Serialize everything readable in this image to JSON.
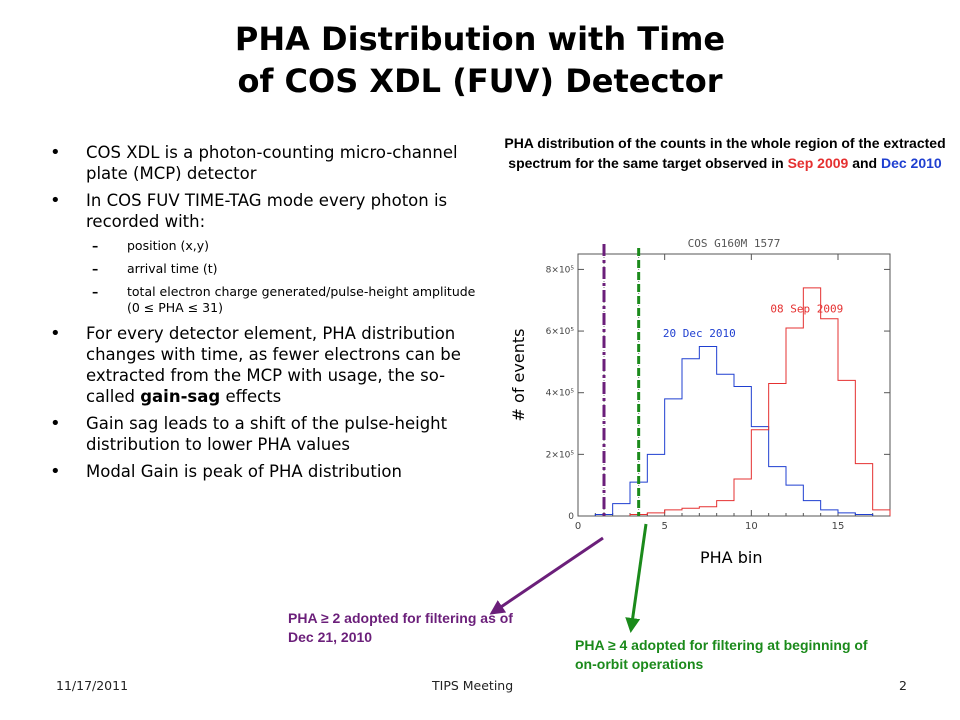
{
  "title": {
    "line1": "PHA Distribution with Time",
    "line2": "of COS XDL (FUV) Detector"
  },
  "bullets": [
    {
      "text": "COS XDL is a photon-counting micro-channel plate (MCP) detector"
    },
    {
      "text": "In COS FUV TIME-TAG mode every photon is recorded with:",
      "sub": [
        "position (x,y)",
        "arrival time (t)",
        "total electron charge generated/pulse-height amplitude (0 ≤ PHA ≤ 31)"
      ]
    },
    {
      "text_pre": "For every detector element, PHA distribution changes with time, as fewer electrons can be extracted from the MCP with usage, the so-called ",
      "text_bold": "gain-sag",
      "text_post": " effects"
    },
    {
      "text": "Gain sag leads to a shift of the pulse-height distribution to lower PHA values"
    },
    {
      "text": "Modal Gain is peak of PHA distribution"
    }
  ],
  "caption": {
    "part1": "PHA distribution of the counts in the whole region of the extracted spectrum for the same target observed in ",
    "red": "Sep 2009",
    "mid": " and ",
    "blue": "Dec 2010"
  },
  "axis_labels": {
    "y": "# of events",
    "x": "PHA bin"
  },
  "notes": {
    "pha2": "PHA ≥ 2 adopted for filtering as of Dec 21, 2010",
    "pha4": "PHA ≥ 4 adopted for filtering at beginning of on-orbit operations"
  },
  "footer": {
    "date": "11/17/2011",
    "center": "TIPS Meeting",
    "page": "2"
  },
  "colors": {
    "red": "#e53030",
    "blue": "#1f3fd0",
    "purple": "#6b1f7a",
    "green": "#1b8a1b",
    "axis": "#555555"
  },
  "chart_data": {
    "type": "line",
    "title": "COS G160M 1577",
    "xlim": [
      0,
      18
    ],
    "ylim": [
      0,
      850000
    ],
    "x_ticks": [
      0,
      5,
      10,
      15
    ],
    "y_ticks": [
      {
        "value": 0,
        "label": "0"
      },
      {
        "value": 200000,
        "label": "2×10⁵"
      },
      {
        "value": 400000,
        "label": "4×10⁵"
      },
      {
        "value": 600000,
        "label": "6×10⁵"
      },
      {
        "value": 800000,
        "label": "8×10⁵"
      }
    ],
    "series": [
      {
        "name": "20 Dec 2010",
        "color": "#1f3fd0",
        "bins": [
          [
            1,
            2,
            5000
          ],
          [
            2,
            3,
            40000
          ],
          [
            3,
            4,
            110000
          ],
          [
            4,
            5,
            200000
          ],
          [
            5,
            6,
            380000
          ],
          [
            6,
            7,
            510000
          ],
          [
            7,
            8,
            550000
          ],
          [
            8,
            9,
            460000
          ],
          [
            9,
            10,
            420000
          ],
          [
            10,
            11,
            290000
          ],
          [
            11,
            12,
            160000
          ],
          [
            12,
            13,
            100000
          ],
          [
            13,
            14,
            50000
          ],
          [
            14,
            15,
            20000
          ],
          [
            15,
            16,
            10000
          ],
          [
            16,
            17,
            5000
          ]
        ]
      },
      {
        "name": "08 Sep 2009",
        "color": "#e53030",
        "bins": [
          [
            3,
            4,
            5000
          ],
          [
            4,
            5,
            10000
          ],
          [
            5,
            6,
            20000
          ],
          [
            6,
            7,
            25000
          ],
          [
            7,
            8,
            30000
          ],
          [
            8,
            9,
            50000
          ],
          [
            9,
            10,
            120000
          ],
          [
            10,
            11,
            280000
          ],
          [
            11,
            12,
            430000
          ],
          [
            12,
            13,
            610000
          ],
          [
            13,
            14,
            740000
          ],
          [
            14,
            15,
            640000
          ],
          [
            15,
            16,
            440000
          ],
          [
            16,
            17,
            170000
          ],
          [
            17,
            18,
            20000
          ]
        ]
      }
    ],
    "threshold_lines": [
      {
        "x": 1.5,
        "color": "#6b1f7a",
        "style": "dash-dot"
      },
      {
        "x": 3.5,
        "color": "#1b8a1b",
        "style": "dashed"
      }
    ],
    "dotted_lines": [
      1.5,
      3.5
    ]
  }
}
